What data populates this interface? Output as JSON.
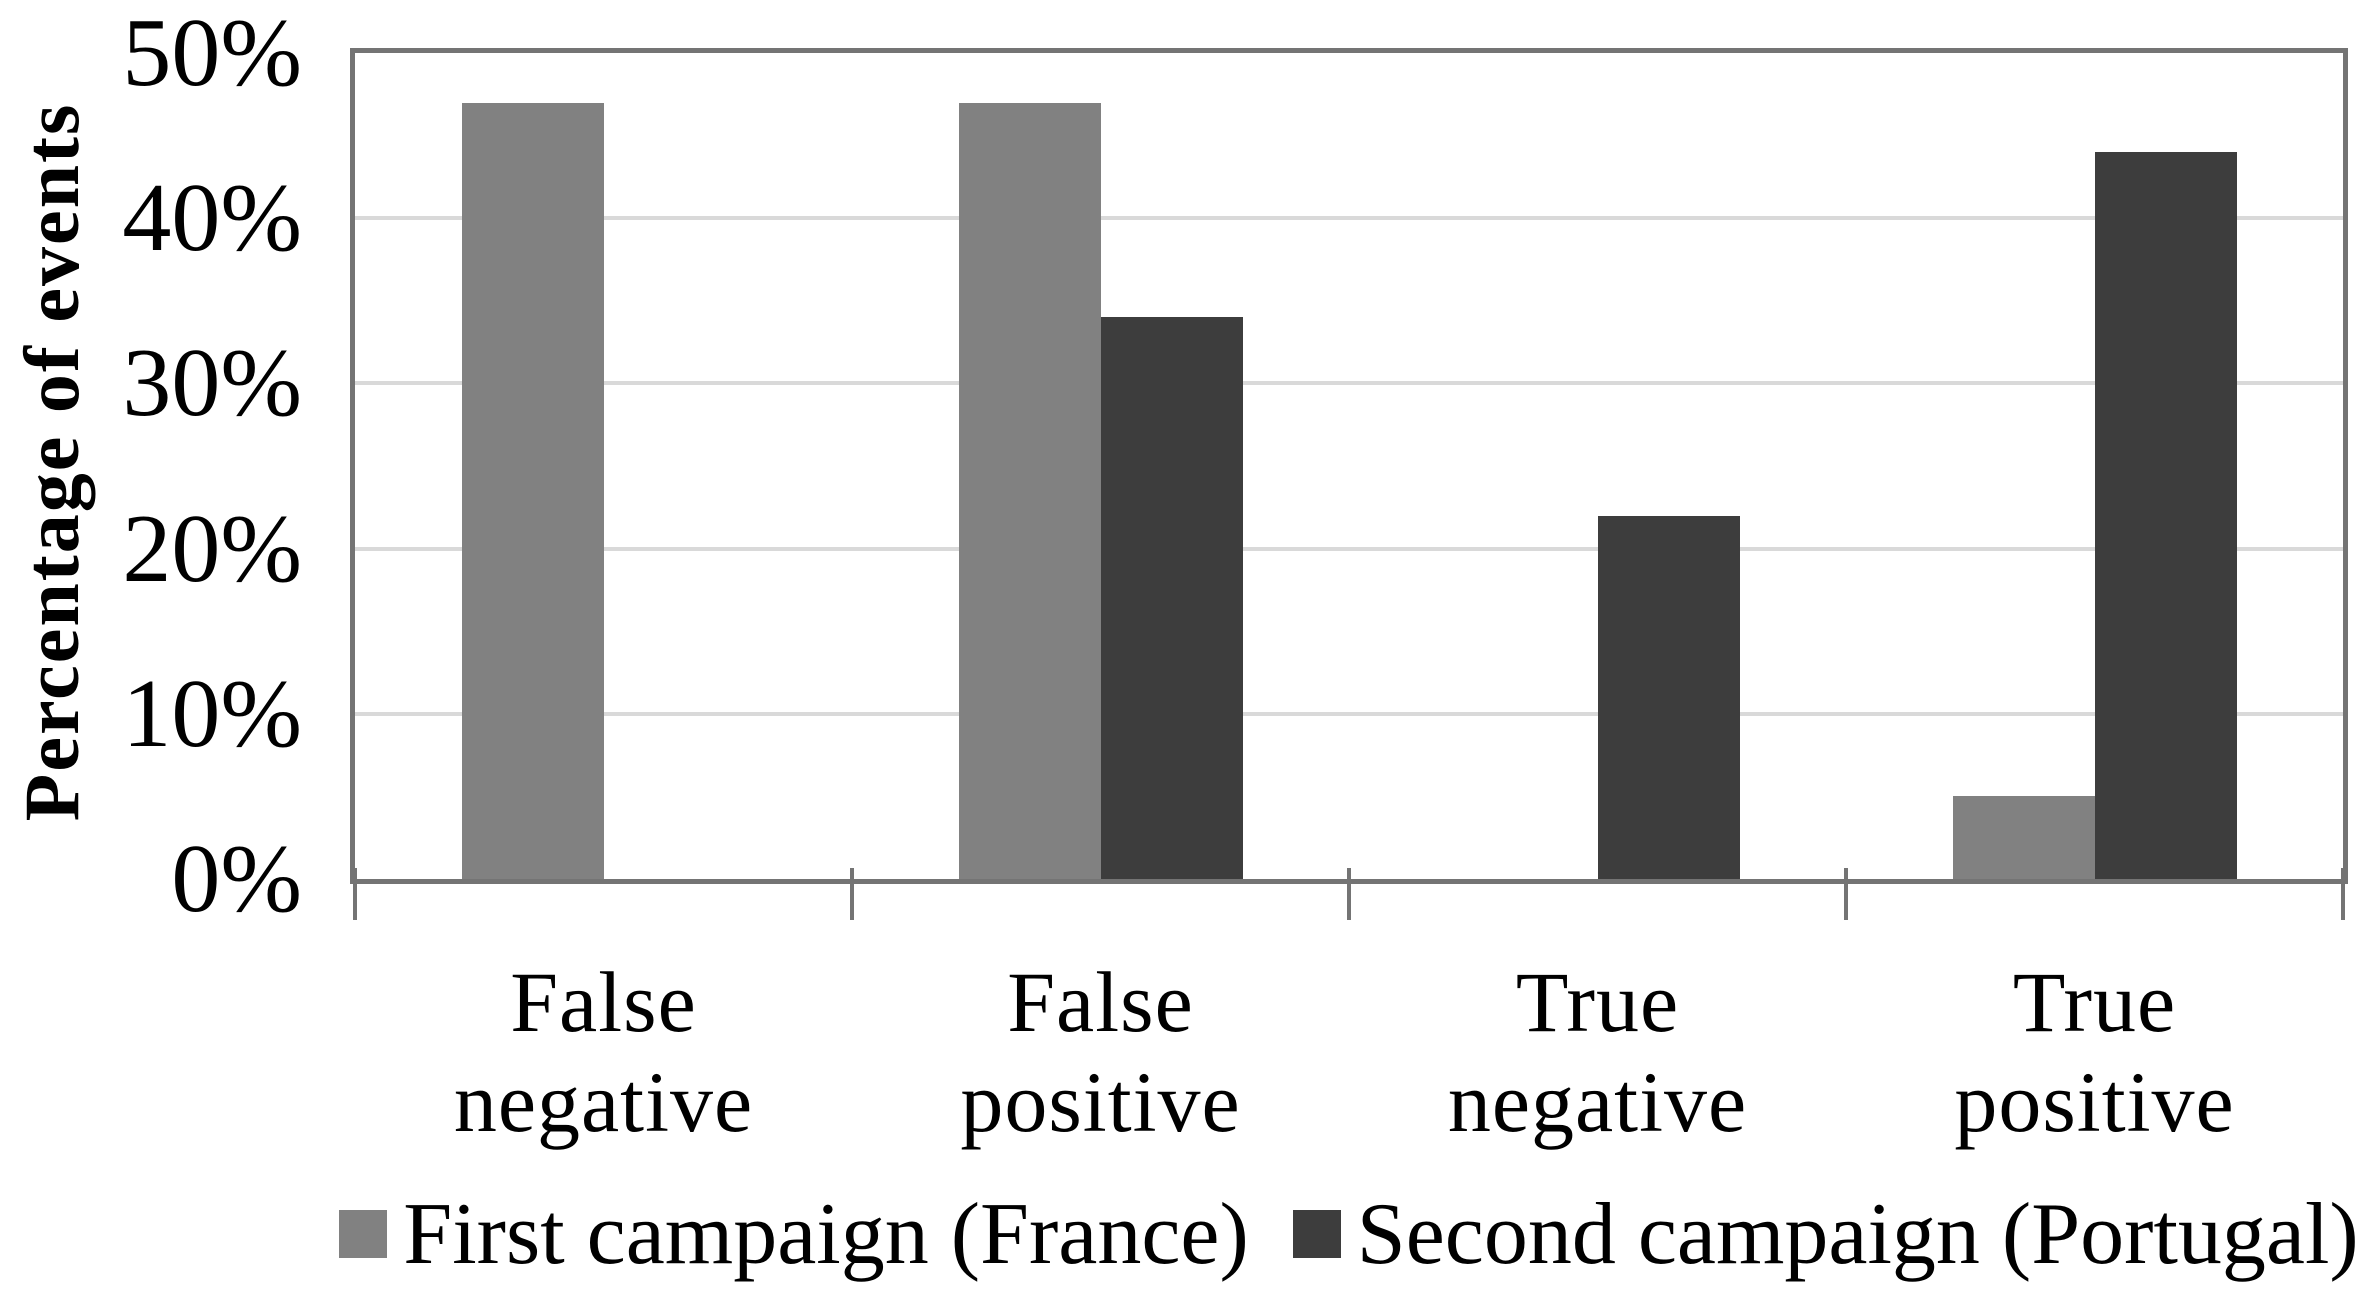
{
  "chart": {
    "y_axis_title": "Percentage of events",
    "y_ticks": [
      "50%",
      "40%",
      "30%",
      "20%",
      "10%",
      "0%"
    ]
  },
  "chart_data": {
    "type": "bar",
    "title": "",
    "xlabel": "",
    "ylabel": "Percentage of events",
    "categories": [
      "False negative",
      "False positive",
      "True negative",
      "True positive"
    ],
    "category_label_lines": [
      [
        "False",
        "negative"
      ],
      [
        "False",
        "positive"
      ],
      [
        "True",
        "negative"
      ],
      [
        "True",
        "positive"
      ]
    ],
    "series": [
      {
        "name": "First campaign (France)",
        "color": "#818181",
        "values": [
          47,
          47,
          0,
          5
        ]
      },
      {
        "name": "Second campaign (Portugal)",
        "color": "#3d3d3d",
        "values": [
          0,
          34,
          22,
          44
        ]
      }
    ],
    "ylim": [
      0,
      50
    ],
    "ytick_step": 10,
    "ytick_format": "percent",
    "grid": true,
    "legend_position": "bottom"
  },
  "colors": {
    "plot_border": "#747474",
    "gridline": "#d9d9d9",
    "background": "#ffffff",
    "text": "#000000"
  }
}
